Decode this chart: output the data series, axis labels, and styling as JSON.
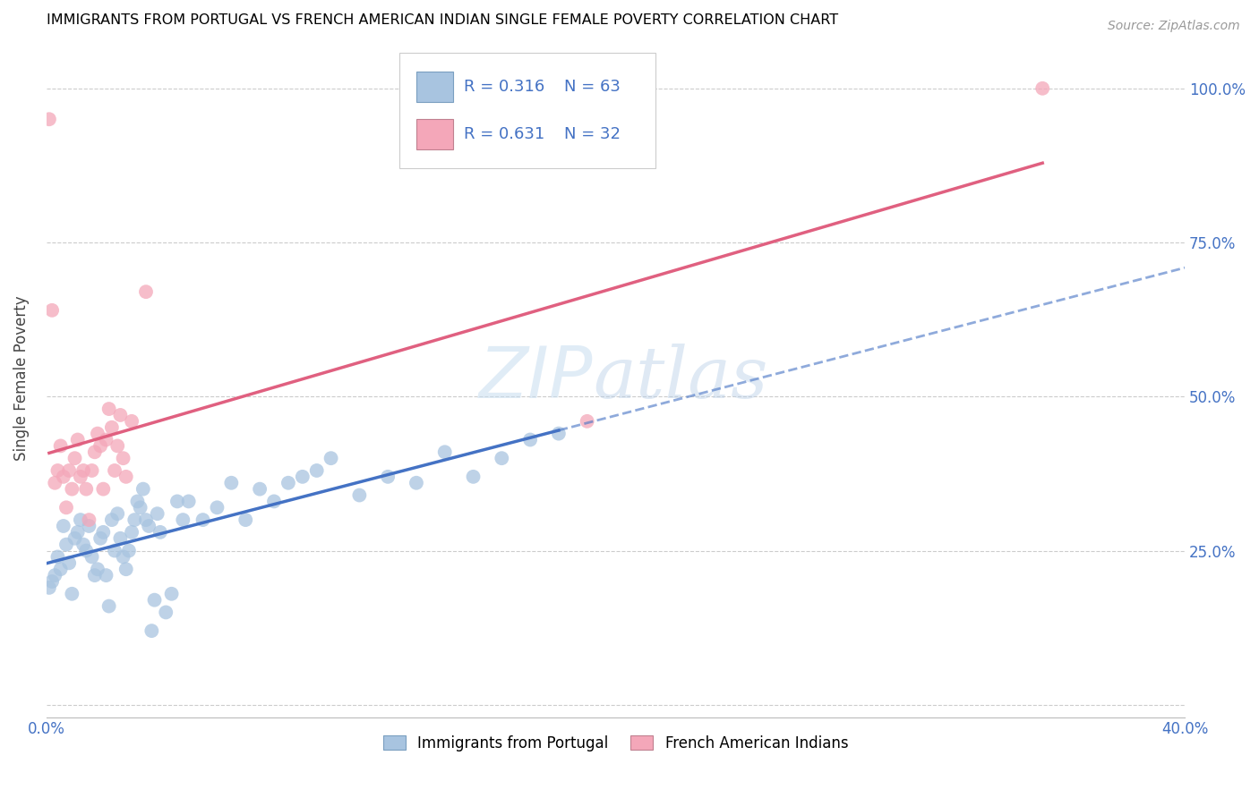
{
  "title": "IMMIGRANTS FROM PORTUGAL VS FRENCH AMERICAN INDIAN SINGLE FEMALE POVERTY CORRELATION CHART",
  "source": "Source: ZipAtlas.com",
  "ylabel": "Single Female Poverty",
  "y_ticks": [
    0.0,
    0.25,
    0.5,
    0.75,
    1.0
  ],
  "y_tick_labels": [
    "",
    "25.0%",
    "50.0%",
    "75.0%",
    "100.0%"
  ],
  "xlim": [
    0.0,
    0.4
  ],
  "ylim": [
    -0.02,
    1.08
  ],
  "blue_R": 0.316,
  "blue_N": 63,
  "pink_R": 0.631,
  "pink_N": 32,
  "blue_color": "#a8c4e0",
  "pink_color": "#f4a7b9",
  "blue_line_color": "#4472c4",
  "pink_line_color": "#e06080",
  "blue_scatter": [
    [
      0.001,
      0.19
    ],
    [
      0.002,
      0.2
    ],
    [
      0.003,
      0.21
    ],
    [
      0.004,
      0.24
    ],
    [
      0.005,
      0.22
    ],
    [
      0.006,
      0.29
    ],
    [
      0.007,
      0.26
    ],
    [
      0.008,
      0.23
    ],
    [
      0.009,
      0.18
    ],
    [
      0.01,
      0.27
    ],
    [
      0.011,
      0.28
    ],
    [
      0.012,
      0.3
    ],
    [
      0.013,
      0.26
    ],
    [
      0.014,
      0.25
    ],
    [
      0.015,
      0.29
    ],
    [
      0.016,
      0.24
    ],
    [
      0.017,
      0.21
    ],
    [
      0.018,
      0.22
    ],
    [
      0.019,
      0.27
    ],
    [
      0.02,
      0.28
    ],
    [
      0.021,
      0.21
    ],
    [
      0.022,
      0.16
    ],
    [
      0.023,
      0.3
    ],
    [
      0.024,
      0.25
    ],
    [
      0.025,
      0.31
    ],
    [
      0.026,
      0.27
    ],
    [
      0.027,
      0.24
    ],
    [
      0.028,
      0.22
    ],
    [
      0.029,
      0.25
    ],
    [
      0.03,
      0.28
    ],
    [
      0.031,
      0.3
    ],
    [
      0.032,
      0.33
    ],
    [
      0.033,
      0.32
    ],
    [
      0.034,
      0.35
    ],
    [
      0.035,
      0.3
    ],
    [
      0.036,
      0.29
    ],
    [
      0.037,
      0.12
    ],
    [
      0.038,
      0.17
    ],
    [
      0.039,
      0.31
    ],
    [
      0.04,
      0.28
    ],
    [
      0.042,
      0.15
    ],
    [
      0.044,
      0.18
    ],
    [
      0.046,
      0.33
    ],
    [
      0.048,
      0.3
    ],
    [
      0.05,
      0.33
    ],
    [
      0.055,
      0.3
    ],
    [
      0.06,
      0.32
    ],
    [
      0.065,
      0.36
    ],
    [
      0.07,
      0.3
    ],
    [
      0.075,
      0.35
    ],
    [
      0.08,
      0.33
    ],
    [
      0.085,
      0.36
    ],
    [
      0.09,
      0.37
    ],
    [
      0.095,
      0.38
    ],
    [
      0.1,
      0.4
    ],
    [
      0.11,
      0.34
    ],
    [
      0.12,
      0.37
    ],
    [
      0.13,
      0.36
    ],
    [
      0.14,
      0.41
    ],
    [
      0.15,
      0.37
    ],
    [
      0.16,
      0.4
    ],
    [
      0.17,
      0.43
    ],
    [
      0.18,
      0.44
    ]
  ],
  "pink_scatter": [
    [
      0.001,
      0.95
    ],
    [
      0.002,
      0.64
    ],
    [
      0.003,
      0.36
    ],
    [
      0.004,
      0.38
    ],
    [
      0.005,
      0.42
    ],
    [
      0.006,
      0.37
    ],
    [
      0.007,
      0.32
    ],
    [
      0.008,
      0.38
    ],
    [
      0.009,
      0.35
    ],
    [
      0.01,
      0.4
    ],
    [
      0.011,
      0.43
    ],
    [
      0.012,
      0.37
    ],
    [
      0.013,
      0.38
    ],
    [
      0.014,
      0.35
    ],
    [
      0.015,
      0.3
    ],
    [
      0.016,
      0.38
    ],
    [
      0.017,
      0.41
    ],
    [
      0.018,
      0.44
    ],
    [
      0.019,
      0.42
    ],
    [
      0.02,
      0.35
    ],
    [
      0.021,
      0.43
    ],
    [
      0.022,
      0.48
    ],
    [
      0.023,
      0.45
    ],
    [
      0.024,
      0.38
    ],
    [
      0.025,
      0.42
    ],
    [
      0.026,
      0.47
    ],
    [
      0.027,
      0.4
    ],
    [
      0.028,
      0.37
    ],
    [
      0.03,
      0.46
    ],
    [
      0.035,
      0.67
    ],
    [
      0.19,
      0.46
    ],
    [
      0.35,
      1.0
    ]
  ],
  "watermark_zip": "ZIP",
  "watermark_atlas": "atlas",
  "legend_blue_label": "Immigrants from Portugal",
  "legend_pink_label": "French American Indians"
}
